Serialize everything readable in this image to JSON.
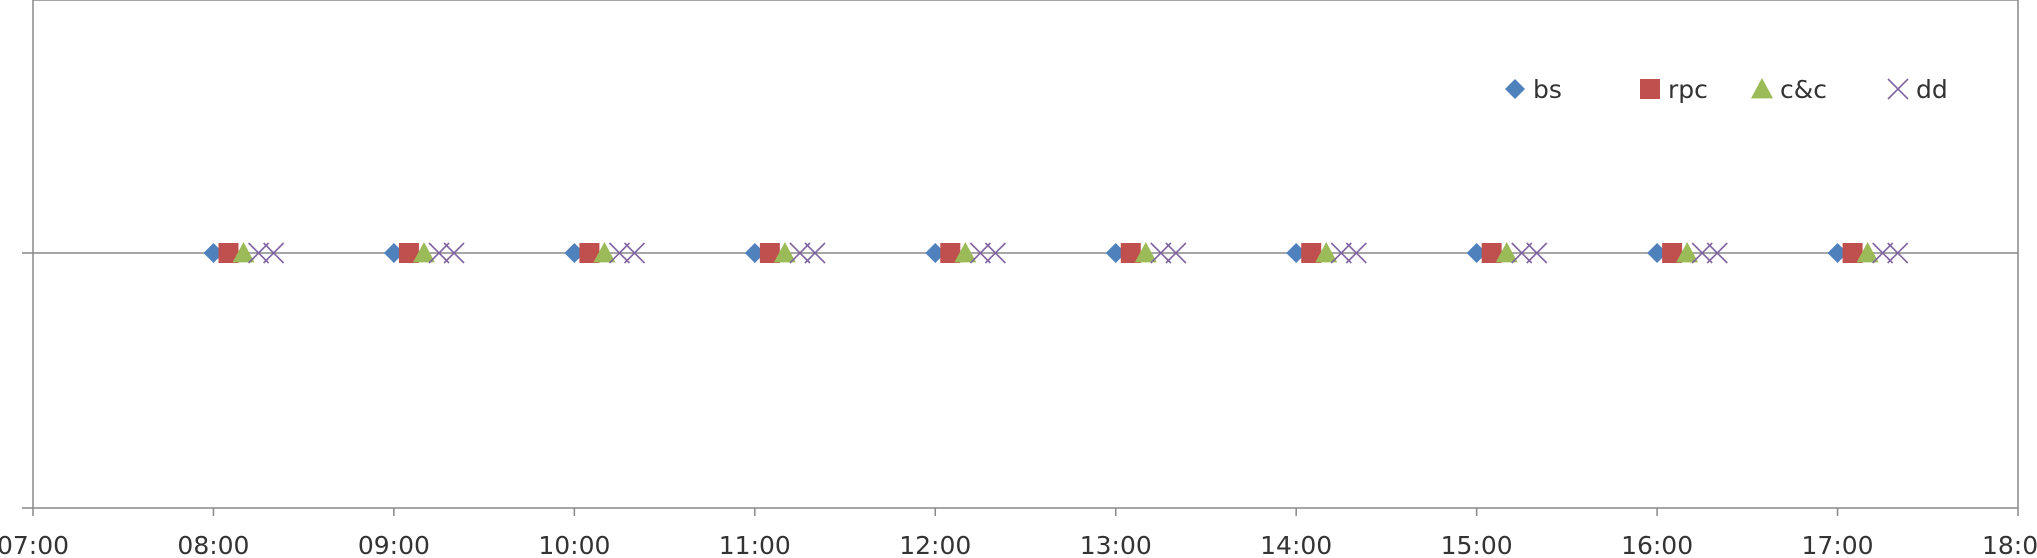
{
  "chart_data": {
    "type": "scatter",
    "title": "",
    "xlabel": "",
    "ylabel": "",
    "x_axis": {
      "type": "time",
      "range": [
        "07:00",
        "18:00"
      ],
      "ticks": [
        "07:00",
        "08:00",
        "09:00",
        "10:00",
        "11:00",
        "12:00",
        "13:00",
        "14:00",
        "15:00",
        "16:00",
        "17:00",
        "18:00"
      ]
    },
    "y_axis": {
      "range": [
        -1,
        1
      ],
      "tick_labels_shown": false
    },
    "grid": false,
    "legend": {
      "position": "top-right",
      "entries": [
        {
          "label": "bs",
          "series": "bs"
        },
        {
          "label": "rpc",
          "series": "rpc"
        },
        {
          "label": "c&c",
          "series": "c&c"
        },
        {
          "label": "dd",
          "series": "dd"
        }
      ]
    },
    "series": [
      {
        "name": "bs",
        "marker": "diamond",
        "color": "#4F81BD",
        "points": [
          {
            "x": "08:00",
            "y": 0
          },
          {
            "x": "09:00",
            "y": 0
          },
          {
            "x": "10:00",
            "y": 0
          },
          {
            "x": "11:00",
            "y": 0
          },
          {
            "x": "12:00",
            "y": 0
          },
          {
            "x": "13:00",
            "y": 0
          },
          {
            "x": "14:00",
            "y": 0
          },
          {
            "x": "15:00",
            "y": 0
          },
          {
            "x": "16:00",
            "y": 0
          },
          {
            "x": "17:00",
            "y": 0
          }
        ]
      },
      {
        "name": "rpc",
        "marker": "square",
        "color": "#C0504D",
        "points": [
          {
            "x": "08:05",
            "y": 0
          },
          {
            "x": "09:05",
            "y": 0
          },
          {
            "x": "10:05",
            "y": 0
          },
          {
            "x": "11:05",
            "y": 0
          },
          {
            "x": "12:05",
            "y": 0
          },
          {
            "x": "13:05",
            "y": 0
          },
          {
            "x": "14:05",
            "y": 0
          },
          {
            "x": "15:05",
            "y": 0
          },
          {
            "x": "16:05",
            "y": 0
          },
          {
            "x": "17:05",
            "y": 0
          }
        ]
      },
      {
        "name": "c&c",
        "marker": "triangle",
        "color": "#9BBB59",
        "points": [
          {
            "x": "08:10",
            "y": 0
          },
          {
            "x": "09:10",
            "y": 0
          },
          {
            "x": "10:10",
            "y": 0
          },
          {
            "x": "11:10",
            "y": 0
          },
          {
            "x": "12:10",
            "y": 0
          },
          {
            "x": "13:10",
            "y": 0
          },
          {
            "x": "14:10",
            "y": 0
          },
          {
            "x": "15:10",
            "y": 0
          },
          {
            "x": "16:10",
            "y": 0
          },
          {
            "x": "17:10",
            "y": 0
          }
        ]
      },
      {
        "name": "dd",
        "marker": "x",
        "color": "#8064A2",
        "points": [
          {
            "x": "08:15",
            "y": 0
          },
          {
            "x": "08:20",
            "y": 0
          },
          {
            "x": "09:15",
            "y": 0
          },
          {
            "x": "09:20",
            "y": 0
          },
          {
            "x": "10:15",
            "y": 0
          },
          {
            "x": "10:20",
            "y": 0
          },
          {
            "x": "11:15",
            "y": 0
          },
          {
            "x": "11:20",
            "y": 0
          },
          {
            "x": "12:15",
            "y": 0
          },
          {
            "x": "12:20",
            "y": 0
          },
          {
            "x": "13:15",
            "y": 0
          },
          {
            "x": "13:20",
            "y": 0
          },
          {
            "x": "14:15",
            "y": 0
          },
          {
            "x": "14:20",
            "y": 0
          },
          {
            "x": "15:15",
            "y": 0
          },
          {
            "x": "15:20",
            "y": 0
          },
          {
            "x": "16:15",
            "y": 0
          },
          {
            "x": "16:20",
            "y": 0
          },
          {
            "x": "17:15",
            "y": 0
          },
          {
            "x": "17:20",
            "y": 0
          }
        ]
      }
    ]
  }
}
